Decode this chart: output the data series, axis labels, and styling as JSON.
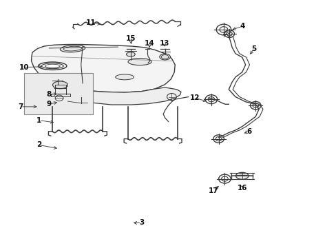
{
  "bg_color": "#ffffff",
  "fig_width": 4.89,
  "fig_height": 3.6,
  "dpi": 100,
  "line_color": "#3a3a3a",
  "text_color": "#111111",
  "font_size": 7.5,
  "label_positions": {
    "1": [
      0.115,
      0.485,
      0.165,
      0.495
    ],
    "2": [
      0.115,
      0.585,
      0.175,
      0.6
    ],
    "3": [
      0.42,
      0.9,
      0.39,
      0.9
    ],
    "4": [
      0.72,
      0.105,
      0.685,
      0.12
    ],
    "5": [
      0.755,
      0.195,
      0.74,
      0.225
    ],
    "6": [
      0.74,
      0.53,
      0.72,
      0.54
    ],
    "7": [
      0.06,
      0.43,
      0.115,
      0.43
    ],
    "8": [
      0.145,
      0.38,
      0.175,
      0.378
    ],
    "9": [
      0.145,
      0.42,
      0.175,
      0.41
    ],
    "10": [
      0.07,
      0.27,
      0.13,
      0.268
    ],
    "11": [
      0.27,
      0.09,
      0.305,
      0.097
    ],
    "12": [
      0.58,
      0.395,
      0.62,
      0.41
    ],
    "13": [
      0.488,
      0.175,
      0.49,
      0.195
    ],
    "14": [
      0.444,
      0.175,
      0.444,
      0.2
    ],
    "15": [
      0.388,
      0.155,
      0.39,
      0.185
    ],
    "16": [
      0.72,
      0.76,
      0.71,
      0.74
    ],
    "17": [
      0.635,
      0.77,
      0.655,
      0.745
    ]
  }
}
